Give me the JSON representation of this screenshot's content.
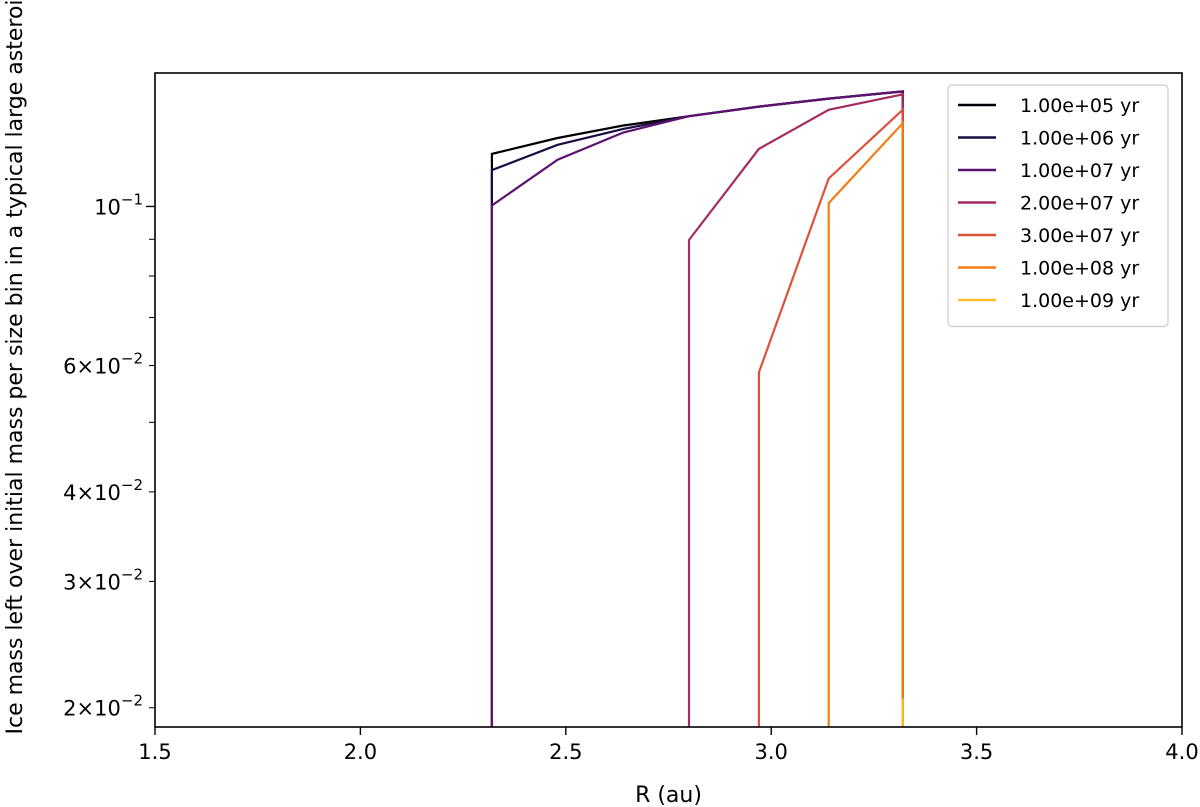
{
  "chart_data": {
    "type": "line",
    "xlabel": "R (au)",
    "ylabel": "Ice mass left over initial mass per size bin in a typical large asteroid",
    "xlim": [
      1.5,
      4.0
    ],
    "ylim": [
      0.0188,
      0.1535
    ],
    "yscale": "log",
    "x_ticks": [
      {
        "value": 1.5,
        "label": "1.5"
      },
      {
        "value": 2.0,
        "label": "2.0"
      },
      {
        "value": 2.5,
        "label": "2.5"
      },
      {
        "value": 3.0,
        "label": "3.0"
      },
      {
        "value": 3.5,
        "label": "3.5"
      },
      {
        "value": 4.0,
        "label": "4.0"
      }
    ],
    "y_major_ticks": [
      {
        "value": 0.1,
        "base": "10",
        "exp": "−1",
        "mant": ""
      }
    ],
    "y_minor_ticks": [
      {
        "value": 0.02,
        "mant": "2",
        "base": "10",
        "exp": "−2"
      },
      {
        "value": 0.03,
        "mant": "3",
        "base": "10",
        "exp": "−2"
      },
      {
        "value": 0.04,
        "mant": "4",
        "base": "10",
        "exp": "−2"
      },
      {
        "value": 0.05,
        "mant": "",
        "base": "",
        "exp": ""
      },
      {
        "value": 0.06,
        "mant": "6",
        "base": "10",
        "exp": "−2"
      },
      {
        "value": 0.07,
        "mant": "",
        "base": "",
        "exp": ""
      },
      {
        "value": 0.08,
        "mant": "",
        "base": "",
        "exp": ""
      },
      {
        "value": 0.09,
        "mant": "",
        "base": "",
        "exp": ""
      }
    ],
    "legend_position": "top-right",
    "series": [
      {
        "name": "1.00e+05 yr",
        "color": "#000004",
        "x": [
          2.32,
          2.32,
          2.48,
          2.64,
          2.8,
          2.97,
          3.14,
          3.32,
          3.32
        ],
        "y": [
          0.0188,
          0.1184,
          0.1246,
          0.1297,
          0.1336,
          0.1378,
          0.1414,
          0.1447,
          0.0188
        ]
      },
      {
        "name": "1.00e+06 yr",
        "color": "#1b0c41",
        "x": [
          2.32,
          2.32,
          2.48,
          2.64,
          2.8,
          2.97,
          3.14,
          3.32,
          3.32
        ],
        "y": [
          0.0188,
          0.1124,
          0.1219,
          0.1283,
          0.1336,
          0.1378,
          0.1414,
          0.1447,
          0.0188
        ]
      },
      {
        "name": "1.00e+07 yr",
        "color": "#5c126e",
        "x": [
          2.32,
          2.32,
          2.48,
          2.64,
          2.8,
          2.97,
          3.14,
          3.32,
          3.32
        ],
        "y": [
          0.0188,
          0.1003,
          0.1162,
          0.1268,
          0.1336,
          0.1378,
          0.1414,
          0.1447,
          0.0188
        ]
      },
      {
        "name": "2.00e+07 yr",
        "color": "#a52c60",
        "x": [
          2.8,
          2.8,
          2.97,
          3.14,
          3.32,
          3.32
        ],
        "y": [
          0.0188,
          0.0898,
          0.1203,
          0.1364,
          0.1433,
          0.0188
        ]
      },
      {
        "name": "3.00e+07 yr",
        "color": "#dd513a",
        "x": [
          2.97,
          2.97,
          3.14,
          3.32,
          3.32
        ],
        "y": [
          0.0188,
          0.0587,
          0.1094,
          0.1364,
          0.0188
        ]
      },
      {
        "name": "1.00e+08 yr",
        "color": "#f57d15",
        "x": [
          3.14,
          3.14,
          3.32,
          3.32
        ],
        "y": [
          0.0188,
          0.1011,
          0.1306,
          0.0188
        ]
      },
      {
        "name": "1.00e+09 yr",
        "color": "#fac127",
        "x": [
          3.32,
          3.32
        ],
        "y": [
          0.0188,
          0.0206
        ]
      }
    ]
  }
}
